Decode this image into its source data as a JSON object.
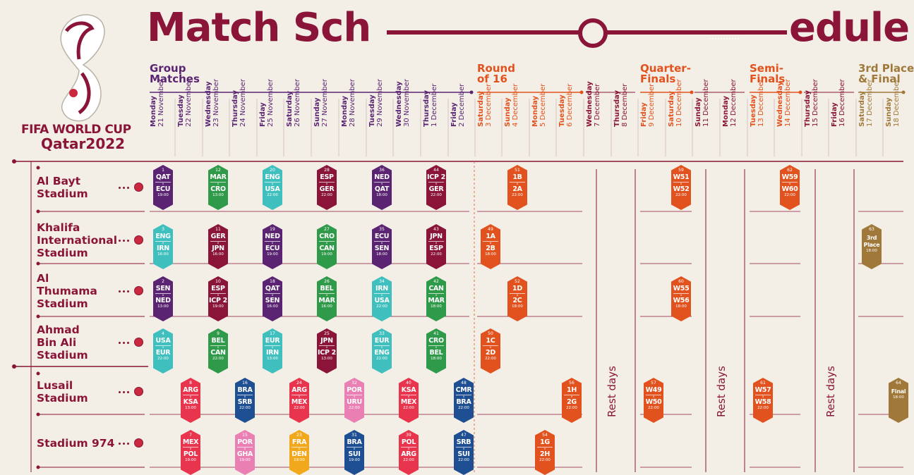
{
  "logo": {
    "line1": "FIFA WORLD CUP",
    "line2": "Qatar2022"
  },
  "title": {
    "part1": "Match Sch",
    "part2": "edule"
  },
  "stages": [
    {
      "label": "Group\nMatches",
      "color": "#5a2472"
    },
    {
      "label": "Round\nof 16",
      "color": "#e2521e"
    },
    {
      "label": "Quarter-\nFinals",
      "color": "#e2521e"
    },
    {
      "label": "Semi-\nFinals",
      "color": "#e2521e"
    },
    {
      "label": "3rd Place\n& Final",
      "color": "#a0793a"
    }
  ],
  "days": [
    {
      "weekday": "Monday",
      "date": "21 November"
    },
    {
      "weekday": "Tuesday",
      "date": "22 November"
    },
    {
      "weekday": "Wednesday",
      "date": "23 November"
    },
    {
      "weekday": "Thursday",
      "date": "24 November"
    },
    {
      "weekday": "Friday",
      "date": "25 November"
    },
    {
      "weekday": "Saturday",
      "date": "26 November"
    },
    {
      "weekday": "Sunday",
      "date": "27 November"
    },
    {
      "weekday": "Monday",
      "date": "28 November"
    },
    {
      "weekday": "Tuesday",
      "date": "29 November"
    },
    {
      "weekday": "Wednesday",
      "date": "30 November"
    },
    {
      "weekday": "Thursday",
      "date": "1 December"
    },
    {
      "weekday": "Friday",
      "date": "2 December"
    },
    {
      "weekday": "Saturday",
      "date": "3 December"
    },
    {
      "weekday": "Sunday",
      "date": "4 December"
    },
    {
      "weekday": "Monday",
      "date": "5 December"
    },
    {
      "weekday": "Tuesday",
      "date": "6 December"
    },
    {
      "weekday": "Wednesday",
      "date": "7 December"
    },
    {
      "weekday": "Thursday",
      "date": "8 December"
    },
    {
      "weekday": "Friday",
      "date": "9 December"
    },
    {
      "weekday": "Saturday",
      "date": "10 December"
    },
    {
      "weekday": "Sunday",
      "date": "11 December"
    },
    {
      "weekday": "Monday",
      "date": "12 December"
    },
    {
      "weekday": "Tuesday",
      "date": "13 December"
    },
    {
      "weekday": "Wednesday",
      "date": "14 December"
    },
    {
      "weekday": "Thursday",
      "date": "15 December"
    },
    {
      "weekday": "Friday",
      "date": "16 December"
    },
    {
      "weekday": "Saturday",
      "date": "17 December"
    },
    {
      "weekday": "Sunday",
      "date": "18 December"
    }
  ],
  "venues": [
    {
      "name": "Al Bayt\nStadium"
    },
    {
      "name": "Khalifa\nInternational\nStadium"
    },
    {
      "name": "Al\nThumama\nStadium"
    },
    {
      "name": "Ahmad\nBin Ali\nStadium"
    },
    {
      "name": "Lusail\nStadium"
    },
    {
      "name": "Stadium 974"
    }
  ],
  "rest_label": "Rest days",
  "versus": "v",
  "matches": [
    {
      "venue": 0,
      "day": 0,
      "no": "1",
      "team1": "QAT",
      "team2": "ECU",
      "time": "19:00",
      "color": "#5a2472"
    },
    {
      "venue": 0,
      "day": 2,
      "no": "12",
      "team1": "MAR",
      "team2": "CRO",
      "time": "13:00",
      "color": "#2f9a4a"
    },
    {
      "venue": 0,
      "day": 4,
      "no": "20",
      "team1": "ENG",
      "team2": "USA",
      "time": "22:00",
      "color": "#3fbfbd"
    },
    {
      "venue": 0,
      "day": 6,
      "no": "28",
      "team1": "ESP",
      "team2": "GER",
      "time": "22:00",
      "color": "#8a1538"
    },
    {
      "venue": 0,
      "day": 8,
      "no": "36",
      "team1": "NED",
      "team2": "QAT",
      "time": "18:00",
      "color": "#5a2472"
    },
    {
      "venue": 0,
      "day": 10,
      "no": "44",
      "team1": "ICP 2",
      "team2": "GER",
      "time": "22:00",
      "color": "#8a1538"
    },
    {
      "venue": 0,
      "day": 13,
      "no": "51",
      "team1": "1B",
      "team2": "2A",
      "time": "22:00",
      "color": "#e2521e"
    },
    {
      "venue": 0,
      "day": 19,
      "no": "59",
      "team1": "W51",
      "team2": "W52",
      "time": "22:00",
      "color": "#e2521e"
    },
    {
      "venue": 0,
      "day": 23,
      "no": "62",
      "team1": "W59",
      "team2": "W60",
      "time": "22:00",
      "color": "#e2521e"
    },
    {
      "venue": 1,
      "day": 0,
      "no": "3",
      "team1": "ENG",
      "team2": "IRN",
      "time": "16:00",
      "color": "#3fbfbd"
    },
    {
      "venue": 1,
      "day": 2,
      "no": "11",
      "team1": "GER",
      "team2": "JPN",
      "time": "16:00",
      "color": "#8a1538"
    },
    {
      "venue": 1,
      "day": 4,
      "no": "19",
      "team1": "NED",
      "team2": "ECU",
      "time": "19:00",
      "color": "#5a2472"
    },
    {
      "venue": 1,
      "day": 6,
      "no": "27",
      "team1": "CRO",
      "team2": "CAN",
      "time": "19:00",
      "color": "#2f9a4a"
    },
    {
      "venue": 1,
      "day": 8,
      "no": "35",
      "team1": "ECU",
      "team2": "SEN",
      "time": "18:00",
      "color": "#5a2472"
    },
    {
      "venue": 1,
      "day": 10,
      "no": "43",
      "team1": "JPN",
      "team2": "ESP",
      "time": "22:00",
      "color": "#8a1538"
    },
    {
      "venue": 1,
      "day": 12,
      "no": "49",
      "team1": "1A",
      "team2": "2B",
      "time": "18:00",
      "color": "#e2521e"
    },
    {
      "venue": 1,
      "day": 26,
      "no": "63",
      "team1": "3rd",
      "team2": "Place",
      "time": "18:00",
      "color": "#a0793a",
      "single": true
    },
    {
      "venue": 2,
      "day": 0,
      "no": "2",
      "team1": "SEN",
      "team2": "NED",
      "time": "13:00",
      "color": "#5a2472"
    },
    {
      "venue": 2,
      "day": 2,
      "no": "10",
      "team1": "ESP",
      "team2": "ICP 2",
      "time": "19:00",
      "color": "#8a1538"
    },
    {
      "venue": 2,
      "day": 4,
      "no": "18",
      "team1": "QAT",
      "team2": "SEN",
      "time": "16:00",
      "color": "#5a2472"
    },
    {
      "venue": 2,
      "day": 6,
      "no": "26",
      "team1": "BEL",
      "team2": "MAR",
      "time": "16:00",
      "color": "#2f9a4a"
    },
    {
      "venue": 2,
      "day": 8,
      "no": "34",
      "team1": "IRN",
      "team2": "USA",
      "time": "22:00",
      "color": "#3fbfbd"
    },
    {
      "venue": 2,
      "day": 10,
      "no": "42",
      "team1": "CAN",
      "team2": "MAR",
      "time": "18:00",
      "color": "#2f9a4a"
    },
    {
      "venue": 2,
      "day": 13,
      "no": "52",
      "team1": "1D",
      "team2": "2C",
      "time": "18:00",
      "color": "#e2521e"
    },
    {
      "venue": 2,
      "day": 19,
      "no": "60",
      "team1": "W55",
      "team2": "W56",
      "time": "18:00",
      "color": "#e2521e"
    },
    {
      "venue": 3,
      "day": 0,
      "no": "4",
      "team1": "USA",
      "team2": "EUR",
      "time": "22:00",
      "color": "#3fbfbd"
    },
    {
      "venue": 3,
      "day": 2,
      "no": "9",
      "team1": "BEL",
      "team2": "CAN",
      "time": "22:00",
      "color": "#2f9a4a"
    },
    {
      "venue": 3,
      "day": 4,
      "no": "17",
      "team1": "EUR",
      "team2": "IRN",
      "time": "13:00",
      "color": "#3fbfbd"
    },
    {
      "venue": 3,
      "day": 6,
      "no": "25",
      "team1": "JPN",
      "team2": "ICP 2",
      "time": "13:00",
      "color": "#8a1538"
    },
    {
      "venue": 3,
      "day": 8,
      "no": "33",
      "team1": "EUR",
      "team2": "ENG",
      "time": "22:00",
      "color": "#3fbfbd"
    },
    {
      "venue": 3,
      "day": 10,
      "no": "41",
      "team1": "CRO",
      "team2": "BEL",
      "time": "18:00",
      "color": "#2f9a4a"
    },
    {
      "venue": 3,
      "day": 12,
      "no": "50",
      "team1": "1C",
      "team2": "2D",
      "time": "22:00",
      "color": "#e2521e"
    },
    {
      "venue": 4,
      "day": 1,
      "no": "8",
      "team1": "ARG",
      "team2": "KSA",
      "time": "13:00",
      "color": "#e8344d"
    },
    {
      "venue": 4,
      "day": 3,
      "no": "16",
      "team1": "BRA",
      "team2": "SRB",
      "time": "22:00",
      "color": "#1f4f93"
    },
    {
      "venue": 4,
      "day": 5,
      "no": "24",
      "team1": "ARG",
      "team2": "MEX",
      "time": "22:00",
      "color": "#e8344d"
    },
    {
      "venue": 4,
      "day": 7,
      "no": "32",
      "team1": "POR",
      "team2": "URU",
      "time": "22:00",
      "color": "#ea7fb4"
    },
    {
      "venue": 4,
      "day": 9,
      "no": "40",
      "team1": "KSA",
      "team2": "MEX",
      "time": "22:00",
      "color": "#e8344d"
    },
    {
      "venue": 4,
      "day": 11,
      "no": "48",
      "team1": "CMR",
      "team2": "BRA",
      "time": "22:00",
      "color": "#1f4f93"
    },
    {
      "venue": 4,
      "day": 15,
      "no": "56",
      "team1": "1H",
      "team2": "2G",
      "time": "22:00",
      "color": "#e2521e"
    },
    {
      "venue": 4,
      "day": 18,
      "no": "57",
      "team1": "W49",
      "team2": "W50",
      "time": "22:00",
      "color": "#e2521e"
    },
    {
      "venue": 4,
      "day": 22,
      "no": "61",
      "team1": "W57",
      "team2": "W58",
      "time": "22:00",
      "color": "#e2521e"
    },
    {
      "venue": 4,
      "day": 27,
      "no": "64",
      "team1": "Final",
      "team2": "",
      "time": "18:00",
      "color": "#a0793a",
      "single": true
    },
    {
      "venue": 5,
      "day": 1,
      "no": "7",
      "team1": "MEX",
      "team2": "POL",
      "time": "19:00",
      "color": "#e8344d"
    },
    {
      "venue": 5,
      "day": 3,
      "no": "15",
      "team1": "POR",
      "team2": "GHA",
      "time": "19:00",
      "color": "#ea7fb4"
    },
    {
      "venue": 5,
      "day": 5,
      "no": "23",
      "team1": "FRA",
      "team2": "DEN",
      "time": "19:00",
      "color": "#f2a81d"
    },
    {
      "venue": 5,
      "day": 7,
      "no": "31",
      "team1": "BRA",
      "team2": "SUI",
      "time": "19:00",
      "color": "#1f4f93"
    },
    {
      "venue": 5,
      "day": 9,
      "no": "39",
      "team1": "POL",
      "team2": "ARG",
      "time": "22:00",
      "color": "#e8344d"
    },
    {
      "venue": 5,
      "day": 11,
      "no": "47",
      "team1": "SRB",
      "team2": "SUI",
      "time": "22:00",
      "color": "#1f4f93"
    },
    {
      "venue": 5,
      "day": 14,
      "no": "54",
      "team1": "1G",
      "team2": "2H",
      "time": "22:00",
      "color": "#e2521e"
    }
  ]
}
